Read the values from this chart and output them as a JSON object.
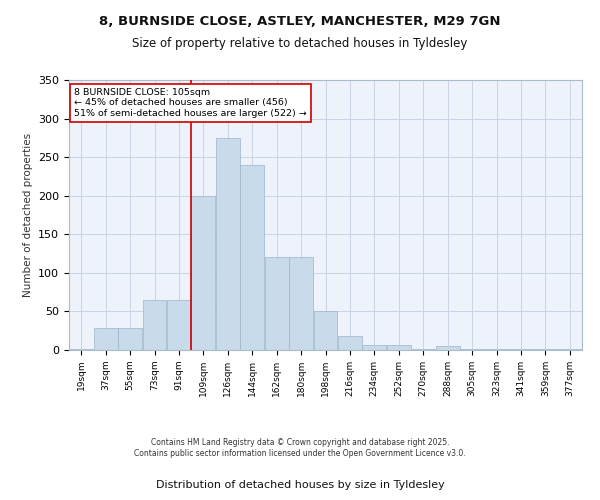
{
  "title_line1": "8, BURNSIDE CLOSE, ASTLEY, MANCHESTER, M29 7GN",
  "title_line2": "Size of property relative to detached houses in Tyldesley",
  "xlabel": "Distribution of detached houses by size in Tyldesley",
  "ylabel": "Number of detached properties",
  "bar_color": "#c9daea",
  "bar_edge_color": "#9ab5cc",
  "background_color": "#eef2fa",
  "grid_color": "#c8d4e4",
  "marker_line_color": "#cc0000",
  "marker_value": 4,
  "annotation_text": "8 BURNSIDE CLOSE: 105sqm\n← 45% of detached houses are smaller (456)\n51% of semi-detached houses are larger (522) →",
  "annotation_box_color": "white",
  "annotation_border_color": "#cc0000",
  "footer_text": "Contains HM Land Registry data © Crown copyright and database right 2025.\nContains public sector information licensed under the Open Government Licence v3.0.",
  "bin_labels": [
    "19sqm",
    "37sqm",
    "55sqm",
    "73sqm",
    "91sqm",
    "109sqm",
    "126sqm",
    "144sqm",
    "162sqm",
    "180sqm",
    "198sqm",
    "216sqm",
    "234sqm",
    "252sqm",
    "270sqm",
    "288sqm",
    "305sqm",
    "323sqm",
    "341sqm",
    "359sqm",
    "377sqm"
  ],
  "counts": [
    1,
    28,
    28,
    65,
    65,
    200,
    275,
    240,
    120,
    120,
    50,
    18,
    6,
    6,
    1,
    5,
    1,
    1,
    1,
    1,
    1
  ],
  "ylim": [
    0,
    350
  ],
  "yticks": [
    0,
    50,
    100,
    150,
    200,
    250,
    300,
    350
  ]
}
